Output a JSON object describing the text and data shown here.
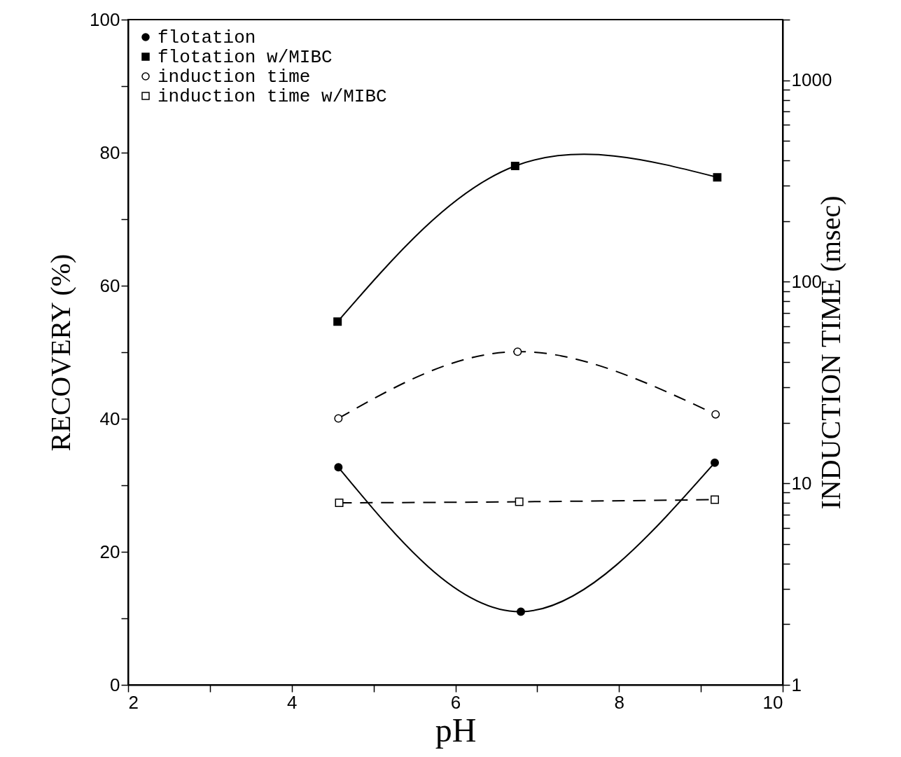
{
  "chart_data": {
    "type": "line",
    "xlabel": "pH",
    "ylabel": "RECOVERY (%)",
    "y2label": "INDUCTION TIME (msec)",
    "xlim": [
      2,
      10
    ],
    "xticks": [
      2,
      {
        "value": 3,
        "label": null
      },
      4,
      {
        "value": 5,
        "label": null
      },
      6,
      {
        "value": 7,
        "label": null
      },
      8,
      {
        "value": 9,
        "label": null
      },
      10
    ],
    "ylim": [
      0,
      100
    ],
    "yticks": [
      0,
      {
        "value": 10,
        "label": null
      },
      20,
      {
        "value": 30,
        "label": null
      },
      40,
      {
        "value": 50,
        "label": null
      },
      60,
      {
        "value": 70,
        "label": null
      },
      80,
      {
        "value": 90,
        "label": null
      },
      100
    ],
    "y2lim": [
      1,
      2000
    ],
    "y2ticks": [
      1,
      {
        "value": 2,
        "label": null
      },
      {
        "value": 3,
        "label": null
      },
      {
        "value": 4,
        "label": null
      },
      {
        "value": 5,
        "label": null
      },
      {
        "value": 6,
        "label": null
      },
      {
        "value": 7,
        "label": null
      },
      {
        "value": 8,
        "label": null
      },
      {
        "value": 9,
        "label": null
      },
      10,
      {
        "value": 20,
        "label": null
      },
      {
        "value": 30,
        "label": null
      },
      {
        "value": 40,
        "label": null
      },
      {
        "value": 50,
        "label": null
      },
      {
        "value": 60,
        "label": null
      },
      {
        "value": 70,
        "label": null
      },
      {
        "value": 80,
        "label": null
      },
      {
        "value": 90,
        "label": null
      },
      100,
      {
        "value": 200,
        "label": null
      },
      {
        "value": 300,
        "label": null
      },
      {
        "value": 400,
        "label": null
      },
      {
        "value": 500,
        "label": null
      },
      {
        "value": 600,
        "label": null
      },
      {
        "value": 700,
        "label": null
      },
      {
        "value": 800,
        "label": null
      },
      {
        "value": 900,
        "label": null
      },
      1000,
      {
        "value": 2000,
        "label": null
      }
    ],
    "log": "y2",
    "grid": false,
    "legend": "top left",
    "series": [
      {
        "name": "flotation",
        "color": "#000000",
        "x": [
          4.57,
          6.8,
          9.17
        ],
        "values": [
          32.7,
          11.0,
          33.4
        ],
        "marker": "circle",
        "line_style": "solid"
      },
      {
        "name": "flotation w/MIBC",
        "color": "#000000",
        "x": [
          4.56,
          6.73,
          9.2
        ],
        "values": [
          54.6,
          78.0,
          76.3
        ],
        "marker": "square",
        "line_style": "solid"
      },
      {
        "name": "induction time",
        "color": "#000000",
        "x": [
          4.57,
          6.76,
          9.18
        ],
        "values": [
          21,
          45,
          22
        ],
        "marker": "circle",
        "line_style": "dashed",
        "axis": "y2"
      },
      {
        "name": "induction time w/MIBC",
        "color": "#000000",
        "x": [
          4.58,
          6.78,
          9.17
        ],
        "values": [
          8.0,
          8.1,
          8.3
        ],
        "marker": "square",
        "line_style": "dashed",
        "axis": "y2"
      }
    ]
  }
}
